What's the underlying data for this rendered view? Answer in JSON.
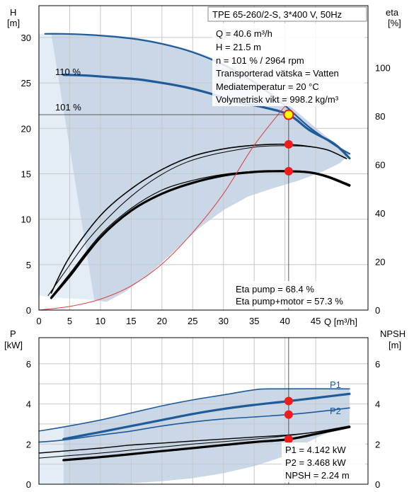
{
  "colors": {
    "band": "#c9d7e6",
    "band_light": "#e4edf6",
    "curve": "#1f5a99",
    "black": "#000000",
    "point": "#ee1c1c",
    "duty_fill": "#ffff00",
    "eta_red": "#e23b3b",
    "grid": "#c8c8c8"
  },
  "chart_data": [
    {
      "type": "line",
      "title": "TPE 65-260/2-S, 3*400 V, 50Hz",
      "xlabel": "Q [m³/h]",
      "ylabel": {
        "unit_top": "H",
        "unit_bottom": "[m]"
      },
      "y2label": {
        "unit_top": "eta",
        "unit_bottom": "[%]"
      },
      "x_ticks": [
        0,
        5,
        10,
        15,
        20,
        25,
        30,
        35,
        40,
        45
      ],
      "y_ticks": [
        0,
        5,
        10,
        15,
        20,
        25,
        30
      ],
      "y2_ticks": [
        0,
        20,
        40,
        60,
        80,
        100
      ],
      "xlim": [
        0,
        53.5
      ],
      "ylim": [
        0,
        33.5
      ],
      "y2lim": [
        0,
        125.6
      ],
      "grid": true,
      "info": [
        "Q = 40.6 m³/h",
        "H = 21.5 m",
        "n = 101 % / 2964 rpm",
        "Transporterad vätska = Vatten",
        "Mediatemperatur = 20 °C",
        "Volymetrisk vikt = 998.2 kg/m³"
      ],
      "curve_labels": [
        "110 %",
        "101 %"
      ],
      "series": [
        {
          "role": "head-max",
          "label_index": 0,
          "x": [
            1,
            4,
            8,
            12,
            16,
            20,
            24,
            28,
            32,
            36,
            40,
            44,
            48,
            50.5
          ],
          "values": [
            30.4,
            30.4,
            30.3,
            30.1,
            29.8,
            29.3,
            28.6,
            27.6,
            26.3,
            24.6,
            22.5,
            20.1,
            18.2,
            17.2
          ]
        },
        {
          "role": "head-duty",
          "label_index": 1,
          "x": [
            4,
            8,
            12,
            16,
            20,
            24,
            28,
            32,
            36,
            40.6,
            44,
            48,
            50.5
          ],
          "values": [
            25.9,
            25.8,
            25.6,
            25.4,
            25.0,
            24.5,
            23.8,
            22.9,
            22.4,
            21.5,
            19.8,
            18.3,
            16.7
          ]
        },
        {
          "role": "eta-pump",
          "x": [
            2,
            5,
            10,
            15,
            20,
            25,
            30,
            35,
            40,
            44,
            47,
            50
          ],
          "values": [
            7,
            22,
            39,
            50,
            58,
            63.5,
            66.5,
            68,
            68.4,
            67.5,
            66,
            62.5
          ]
        },
        {
          "role": "eta-pump-max",
          "x": [
            1.5,
            4,
            8,
            12,
            16,
            20,
            24,
            28,
            32,
            36,
            40,
            44,
            47,
            50
          ],
          "values": [
            6,
            15,
            29,
            40,
            49,
            56,
            61,
            64,
            66,
            67.5,
            67.8,
            67.4,
            66,
            62.5
          ]
        },
        {
          "role": "eta-total",
          "x": [
            2,
            5,
            10,
            15,
            20,
            25,
            30,
            35,
            40,
            44,
            47,
            50.5
          ],
          "values": [
            5,
            14,
            30,
            41,
            48,
            52.5,
            55.5,
            57,
            57.3,
            56.8,
            55,
            51.5
          ]
        },
        {
          "role": "eta-total-alt",
          "x": [
            2,
            5,
            10,
            15,
            20,
            25,
            30,
            35,
            40,
            44,
            47,
            50.5
          ],
          "values": [
            5.5,
            15,
            31,
            42,
            49.5,
            53.5,
            56,
            57.2,
            57.3,
            56.6,
            54.6,
            51
          ]
        },
        {
          "role": "eta-red",
          "x": [
            0,
            5,
            10,
            15,
            20,
            25,
            30,
            35,
            40.6
          ],
          "values": [
            0,
            1.5,
            4.5,
            10,
            19,
            32,
            48,
            68,
            86
          ]
        }
      ],
      "band": {
        "x": [
          2,
          6,
          10,
          14,
          18,
          22,
          26,
          30,
          34,
          38,
          42,
          46,
          50.5,
          49,
          46,
          42,
          38,
          34,
          30,
          26,
          22,
          18,
          14,
          11,
          9
        ],
        "values": [
          30.4,
          30.4,
          30.3,
          30.1,
          29.7,
          29.1,
          28.3,
          27.2,
          25.8,
          24.0,
          21.8,
          19.5,
          17.2,
          16.2,
          15.2,
          14.2,
          13.4,
          12.5,
          11.0,
          9.0,
          6.5,
          4.0,
          2.0,
          0.9,
          1.1
        ]
      },
      "points": [
        {
          "role": "duty",
          "x": 40.6,
          "axis": "H",
          "y": 21.5
        },
        {
          "role": "eta-pump",
          "x": 40.6,
          "axis": "eta",
          "y": 68.4
        },
        {
          "role": "eta-total",
          "x": 40.6,
          "axis": "eta",
          "y": 57.3
        }
      ],
      "annotations": [
        "Eta pump = 68.4 %",
        "Eta pump+motor = 57.3 %"
      ]
    },
    {
      "type": "line",
      "ylabel": {
        "unit_top": "P",
        "unit_bottom": "[kW]"
      },
      "y2label": {
        "unit_top": "NPSH",
        "unit_bottom": "[m]"
      },
      "x_ticks": [
        0,
        5,
        10,
        15,
        20,
        25,
        30,
        35,
        40,
        45
      ],
      "y_ticks": [
        0,
        2,
        4,
        6
      ],
      "y2_ticks": [
        0,
        2,
        4,
        6
      ],
      "xlim": [
        0,
        53.5
      ],
      "ylim": [
        0,
        7.3
      ],
      "grid": true,
      "series": [
        {
          "role": "p1-max",
          "name": "P1",
          "x": [
            0,
            4,
            10,
            15,
            20,
            25,
            30,
            35,
            38,
            50.5
          ],
          "values": [
            2.65,
            2.85,
            3.2,
            3.55,
            3.9,
            4.2,
            4.45,
            4.7,
            4.75,
            4.75
          ]
        },
        {
          "role": "p1",
          "x": [
            4,
            10,
            15,
            20,
            25,
            30,
            35,
            40.6,
            45,
            50.5
          ],
          "values": [
            2.25,
            2.6,
            2.9,
            3.2,
            3.5,
            3.75,
            3.95,
            4.14,
            4.3,
            4.5
          ]
        },
        {
          "role": "p2",
          "name": "P2",
          "x": [
            0,
            4,
            10,
            15,
            20,
            25,
            30,
            35,
            40.6,
            45,
            50.5
          ],
          "values": [
            2.1,
            2.2,
            2.45,
            2.65,
            2.9,
            3.1,
            3.25,
            3.35,
            3.47,
            3.6,
            3.8
          ]
        },
        {
          "role": "npsh",
          "x": [
            4,
            10,
            15,
            20,
            25,
            30,
            35,
            40.6,
            45,
            50.5
          ],
          "values": [
            1.2,
            1.35,
            1.5,
            1.65,
            1.8,
            1.95,
            2.1,
            2.24,
            2.5,
            2.85
          ]
        },
        {
          "role": "npsh-alt",
          "x": [
            0,
            4,
            10,
            15,
            20,
            25,
            30,
            35,
            40.6,
            45,
            50.5
          ],
          "values": [
            1.55,
            1.65,
            1.8,
            1.95,
            2.05,
            2.15,
            2.25,
            2.35,
            2.45,
            2.6,
            2.9
          ]
        },
        {
          "role": "p2-alt",
          "x": [
            0,
            4,
            10,
            15,
            20,
            25,
            30,
            35,
            40,
            45,
            50.5
          ],
          "values": [
            1.3,
            1.4,
            1.55,
            1.7,
            1.85,
            2.0,
            2.12,
            2.25,
            2.4,
            2.6,
            2.9
          ]
        }
      ],
      "band": {
        "x": [
          4,
          10,
          15,
          20,
          25,
          30,
          35,
          38,
          50.5,
          50.5,
          48,
          45,
          42,
          40,
          35,
          30,
          25,
          20,
          15,
          10,
          4
        ],
        "values": [
          2.85,
          3.2,
          3.55,
          3.9,
          4.2,
          4.45,
          4.7,
          4.75,
          4.75,
          2.9,
          2.7,
          2.3,
          1.8,
          1.4,
          0.9,
          0.55,
          0.3,
          0.15,
          0.05,
          0.0,
          0.0
        ]
      },
      "points": [
        {
          "role": "p1",
          "x": 40.6,
          "y": 4.142
        },
        {
          "role": "p2",
          "x": 40.6,
          "y": 3.468
        },
        {
          "role": "npsh",
          "x": 40.6,
          "y": 2.24
        }
      ],
      "annotations": [
        "P1 = 4.142 kW",
        "P2 = 3.468 kW",
        "NPSH = 2.24 m"
      ]
    }
  ]
}
